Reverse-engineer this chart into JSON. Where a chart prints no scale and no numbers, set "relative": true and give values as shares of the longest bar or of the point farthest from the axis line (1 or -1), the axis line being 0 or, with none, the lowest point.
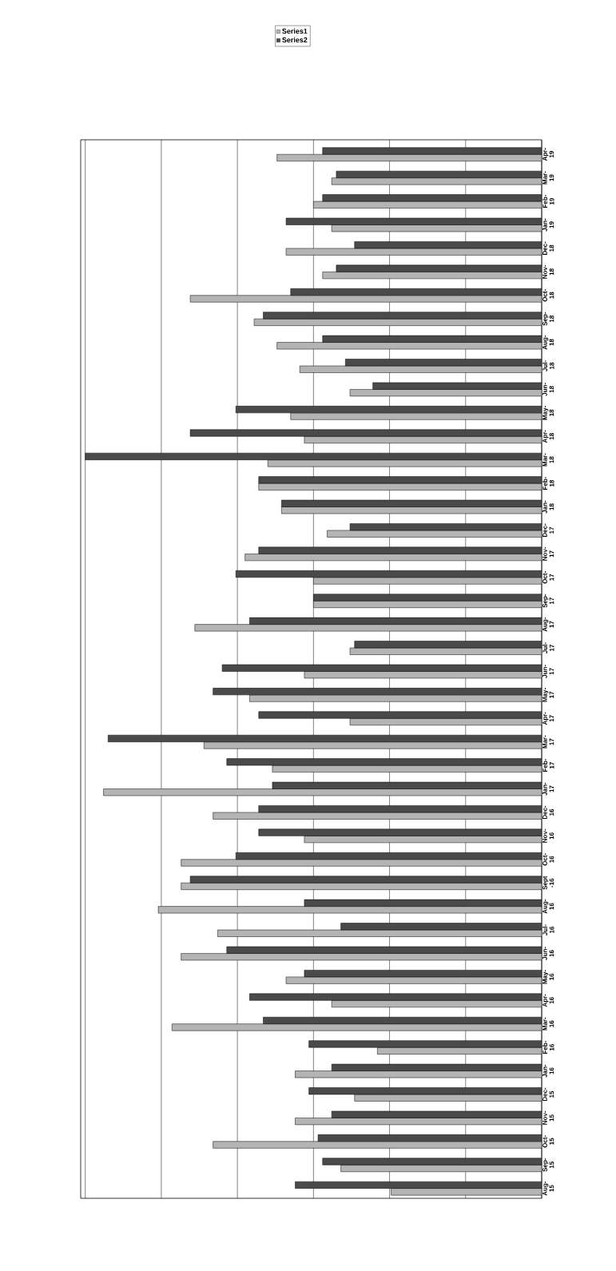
{
  "chart_data": {
    "type": "bar",
    "orientation": "horizontal",
    "relative": true,
    "grid": "x",
    "legend": "top",
    "categories": [
      "Apr-19",
      "Mar-19",
      "Feb-19",
      "Jan-19",
      "Dec-18",
      "Nov-18",
      "Oct-18",
      "Sep-18",
      "Aug-18",
      "Jul-18",
      "Jun-18",
      "May-18",
      "Apr-18",
      "Mar-18",
      "Feb-18",
      "Jan-18",
      "Dec-17",
      "Nov-17",
      "Oct-17",
      "Sep-17",
      "Aug-17",
      "Jul-17",
      "Jun-17",
      "May-17",
      "Apr-17",
      "Mar-17",
      "Feb-17",
      "Jan-17",
      "Dec-16",
      "Nov-16",
      "Oct-16",
      "Sept -16",
      "Aug-16",
      "Jul-16",
      "Jun-16",
      "May-16",
      "Apr-16",
      "Mar-16",
      "Feb-16",
      "Jan-16",
      "Dec-15",
      "Nov-15",
      "Oct-15",
      "Sep-15",
      "Aug-15"
    ],
    "series": [
      {
        "name": "Series1",
        "color": "#b4b4b4",
        "values": [
          0.58,
          0.46,
          0.5,
          0.46,
          0.56,
          0.48,
          0.77,
          0.63,
          0.58,
          0.53,
          0.42,
          0.55,
          0.52,
          0.6,
          0.62,
          0.57,
          0.47,
          0.65,
          0.5,
          0.5,
          0.76,
          0.42,
          0.52,
          0.64,
          0.42,
          0.74,
          0.59,
          0.96,
          0.72,
          0.52,
          0.79,
          0.79,
          0.84,
          0.71,
          0.79,
          0.56,
          0.46,
          0.81,
          0.36,
          0.54,
          0.41,
          0.54,
          0.72,
          0.44,
          0.33
        ]
      },
      {
        "name": "Series2",
        "color": "#4a4a4a",
        "values": [
          0.48,
          0.45,
          0.48,
          0.56,
          0.41,
          0.45,
          0.55,
          0.61,
          0.48,
          0.43,
          0.37,
          0.67,
          0.77,
          1.0,
          0.62,
          0.57,
          0.42,
          0.62,
          0.67,
          0.5,
          0.64,
          0.41,
          0.7,
          0.72,
          0.62,
          0.95,
          0.69,
          0.59,
          0.62,
          0.62,
          0.67,
          0.77,
          0.52,
          0.44,
          0.69,
          0.52,
          0.64,
          0.61,
          0.51,
          0.46,
          0.51,
          0.46,
          0.49,
          0.48,
          0.54
        ]
      }
    ]
  }
}
